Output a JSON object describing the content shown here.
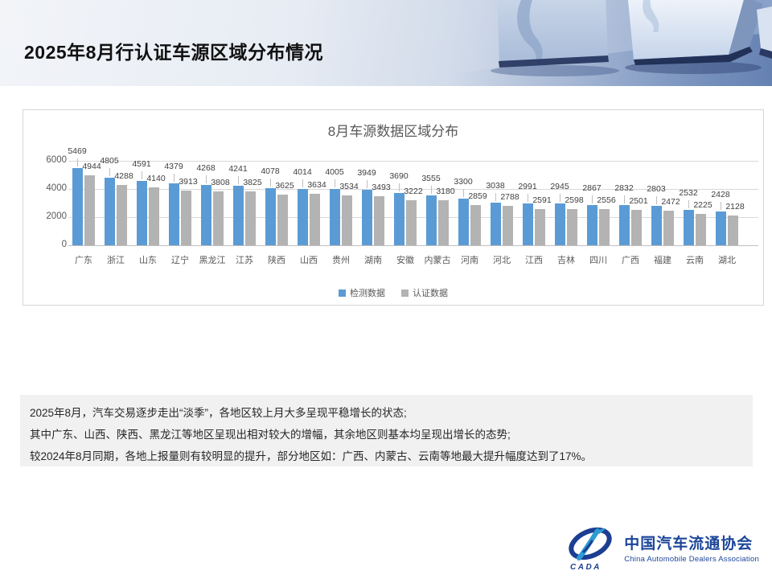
{
  "header": {
    "title": "2025年8月行认证车源区域分布情况"
  },
  "chart_data": {
    "type": "bar",
    "title": "8月车源数据区域分布",
    "categories": [
      "广东",
      "浙江",
      "山东",
      "辽宁",
      "黑龙江",
      "江苏",
      "陕西",
      "山西",
      "贵州",
      "湖南",
      "安徽",
      "内蒙古",
      "河南",
      "河北",
      "江西",
      "吉林",
      "四川",
      "广西",
      "福建",
      "云南",
      "湖北"
    ],
    "series": [
      {
        "name": "检测数据",
        "color": "#5B9BD5",
        "values": [
          5469,
          4805,
          4591,
          4379,
          4268,
          4241,
          4078,
          4014,
          4005,
          3949,
          3690,
          3555,
          3300,
          3038,
          2991,
          2945,
          2867,
          2832,
          2803,
          2532,
          2428
        ]
      },
      {
        "name": "认证数据",
        "color": "#B3B3B3",
        "values": [
          4944,
          4288,
          4140,
          3913,
          3808,
          3825,
          3625,
          3634,
          3534,
          3493,
          3222,
          3180,
          2859,
          2788,
          2591,
          2598,
          2556,
          2501,
          2472,
          2225,
          2128
        ]
      }
    ],
    "ylim": [
      0,
      6000
    ],
    "yticks": [
      0,
      2000,
      4000,
      6000
    ],
    "grid": true,
    "legend_position": "bottom",
    "data_labels": true
  },
  "summary": {
    "lines": [
      "2025年8月，汽车交易逐步走出“淡季”，各地区较上月大多呈现平稳增长的状态;",
      "其中广东、山西、陕西、黑龙江等地区呈现出相对较大的增幅，其余地区则基本均呈现出增长的态势;",
      "较2024年8月同期，各地上报量则有较明显的提升，部分地区如：广西、内蒙古、云南等地最大提升幅度达到了17%。"
    ]
  },
  "footer_logo": {
    "cn": "中国汽车流通协会",
    "en": "China Automobile Dealers Association",
    "emblem": "CADA"
  },
  "colors": {
    "series_detection": "#5B9BD5",
    "series_certified": "#B3B3B3",
    "logo_blue": "#1c4699",
    "gridline": "#d9d9d9",
    "summary_bg": "#f1f1f1"
  }
}
